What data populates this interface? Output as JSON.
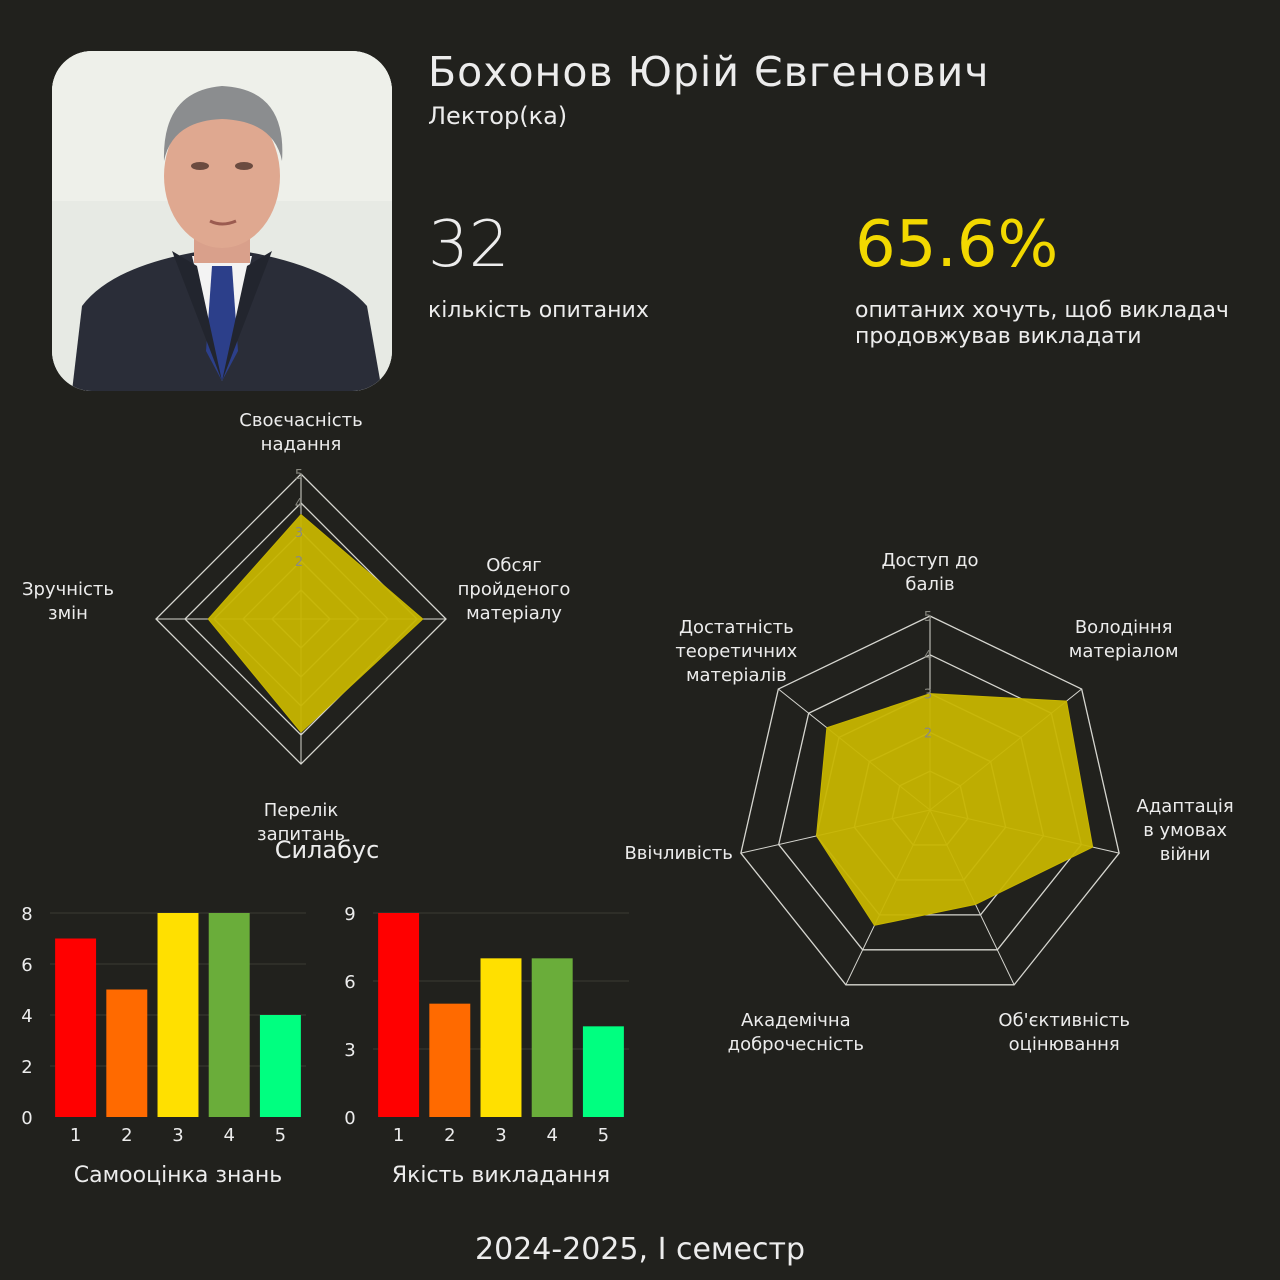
{
  "profile": {
    "name": "Бохонов Юрій Євгенович",
    "role": "Лектор(ка)",
    "photo_alt": "portrait"
  },
  "stats": {
    "respondents_value": "32",
    "respondents_label": "кількість опитаних",
    "continue_value": "65.6%",
    "continue_label": "опитаних хочуть, щоб викладач продовжував викладати"
  },
  "footer": {
    "semester": "2024-2025, І семестр"
  },
  "colors": {
    "background": "#21211d",
    "accent_yellow": "#f2d800",
    "radar_fill": "#c7b500",
    "bar_colors": [
      "#ff0000",
      "#ff6a00",
      "#ffe000",
      "#6aad3a",
      "#00ff80"
    ]
  },
  "chart_data": [
    {
      "type": "radar",
      "title": "Силабус",
      "axes": [
        [
          "Своєчасність",
          "надання"
        ],
        [
          "Обсяг",
          "пройденого",
          "матеріалу"
        ],
        [
          "Перелік",
          "запитань"
        ],
        [
          "Зручність",
          "змін"
        ]
      ],
      "values": [
        3.6,
        4.2,
        3.9,
        3.2
      ],
      "range": [
        0,
        5
      ],
      "ticks": [
        2,
        3,
        4,
        5
      ]
    },
    {
      "type": "radar",
      "title": "",
      "axes": [
        [
          "Доступ до",
          "балів"
        ],
        [
          "Володіння",
          "матеріалом"
        ],
        [
          "Адаптація",
          "в умовах",
          "війни"
        ],
        [
          "Об'єктивність",
          "оцінювання"
        ],
        [
          "Академічна",
          "доброчесність"
        ],
        [
          "Ввічливість"
        ],
        [
          "Достатність",
          "теоретичних",
          "матеріалів"
        ]
      ],
      "values": [
        3.0,
        4.5,
        4.3,
        2.7,
        3.3,
        3.0,
        3.4
      ],
      "range": [
        0,
        5
      ],
      "ticks": [
        2,
        3,
        4,
        5
      ]
    },
    {
      "type": "bar",
      "title": "Самооцінка знань",
      "categories": [
        "1",
        "2",
        "3",
        "4",
        "5"
      ],
      "values": [
        7,
        5,
        8,
        8,
        4
      ],
      "ylim": [
        0,
        8
      ],
      "yticks": [
        0,
        2,
        4,
        6,
        8
      ]
    },
    {
      "type": "bar",
      "title": "Якість викладання",
      "categories": [
        "1",
        "2",
        "3",
        "4",
        "5"
      ],
      "values": [
        9,
        5,
        7,
        7,
        4
      ],
      "ylim": [
        0,
        9
      ],
      "yticks": [
        0,
        3,
        6,
        9
      ]
    }
  ]
}
